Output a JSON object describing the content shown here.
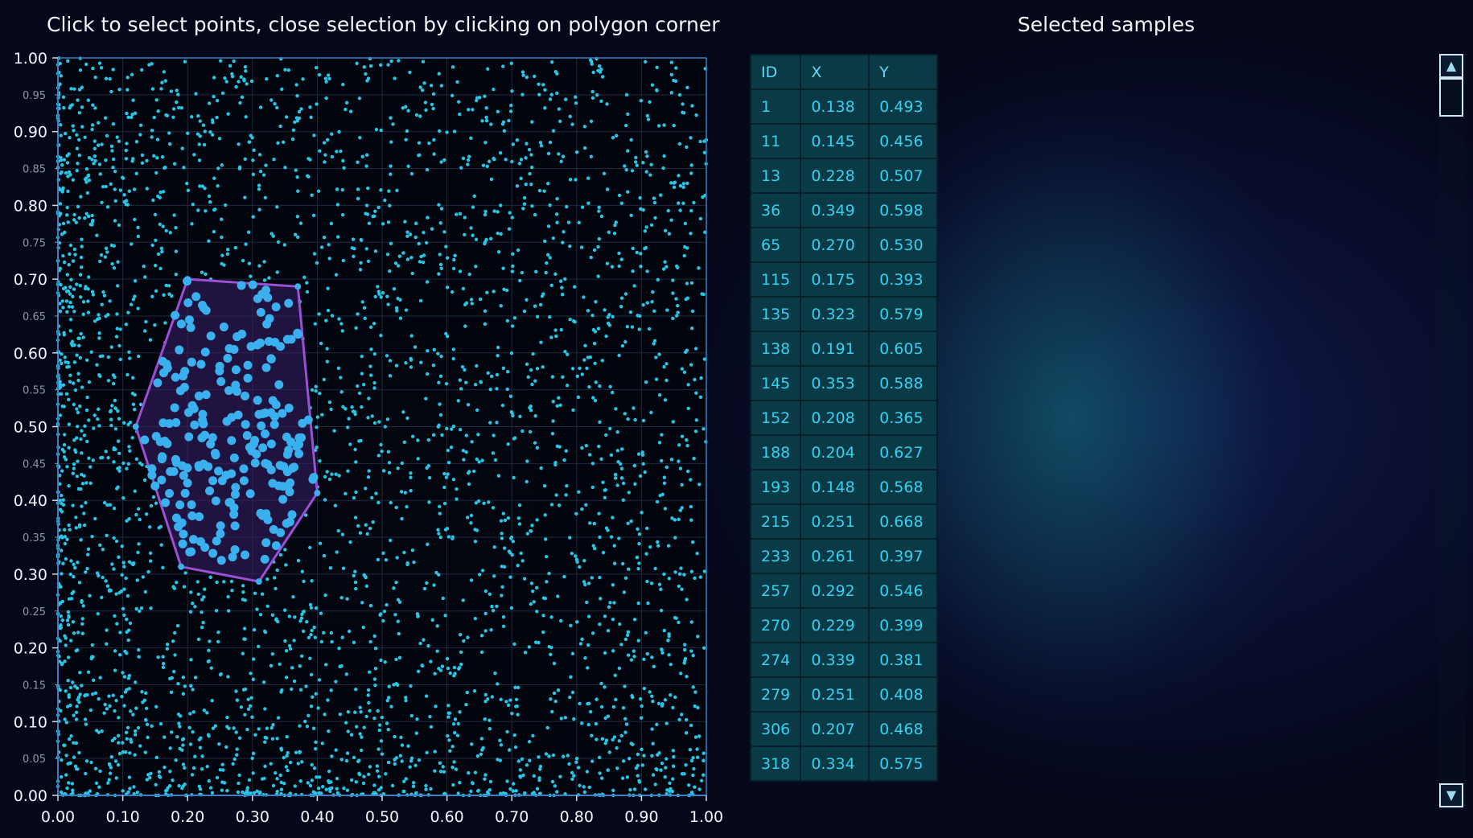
{
  "header": {
    "instruction": "Click to select points, close selection by clicking on polygon corner",
    "table_title": "Selected samples"
  },
  "colors": {
    "points": "#27c6e6",
    "selected_points": "#3ab0ee",
    "polygon_stroke": "#9b4fd6",
    "polygon_fill": "#3a1f6a",
    "axis": "#3c7fc4",
    "grid": "#1b2a3c"
  },
  "chart_data": {
    "type": "scatter",
    "xlim": [
      0,
      1
    ],
    "ylim": [
      0,
      1
    ],
    "x_ticks": [
      "0.00",
      "0.10",
      "0.20",
      "0.30",
      "0.40",
      "0.50",
      "0.60",
      "0.70",
      "0.80",
      "0.90",
      "1.00"
    ],
    "y_major_ticks": [
      "0.00",
      "0.10",
      "0.20",
      "0.30",
      "0.40",
      "0.50",
      "0.60",
      "0.70",
      "0.80",
      "0.90",
      "1.00"
    ],
    "y_minor_ticks": [
      "0.05",
      "0.15",
      "0.25",
      "0.35",
      "0.45",
      "0.55",
      "0.65",
      "0.75",
      "0.85",
      "0.95"
    ],
    "grid": true,
    "selection_polygon": [
      [
        0.12,
        0.5
      ],
      [
        0.2,
        0.7
      ],
      [
        0.37,
        0.69
      ],
      [
        0.4,
        0.41
      ],
      [
        0.31,
        0.29
      ],
      [
        0.19,
        0.31
      ]
    ]
  },
  "table": {
    "columns": [
      "ID",
      "X",
      "Y"
    ],
    "rows": [
      [
        "1",
        "0.138",
        "0.493"
      ],
      [
        "11",
        "0.145",
        "0.456"
      ],
      [
        "13",
        "0.228",
        "0.507"
      ],
      [
        "36",
        "0.349",
        "0.598"
      ],
      [
        "65",
        "0.270",
        "0.530"
      ],
      [
        "115",
        "0.175",
        "0.393"
      ],
      [
        "135",
        "0.323",
        "0.579"
      ],
      [
        "138",
        "0.191",
        "0.605"
      ],
      [
        "145",
        "0.353",
        "0.588"
      ],
      [
        "152",
        "0.208",
        "0.365"
      ],
      [
        "188",
        "0.204",
        "0.627"
      ],
      [
        "193",
        "0.148",
        "0.568"
      ],
      [
        "215",
        "0.251",
        "0.668"
      ],
      [
        "233",
        "0.261",
        "0.397"
      ],
      [
        "257",
        "0.292",
        "0.546"
      ],
      [
        "270",
        "0.229",
        "0.399"
      ],
      [
        "274",
        "0.339",
        "0.381"
      ],
      [
        "279",
        "0.251",
        "0.408"
      ],
      [
        "306",
        "0.207",
        "0.468"
      ],
      [
        "318",
        "0.334",
        "0.575"
      ]
    ]
  },
  "scrollbar": {
    "up_icon": "triangle-up-icon",
    "down_icon": "triangle-down-icon"
  }
}
